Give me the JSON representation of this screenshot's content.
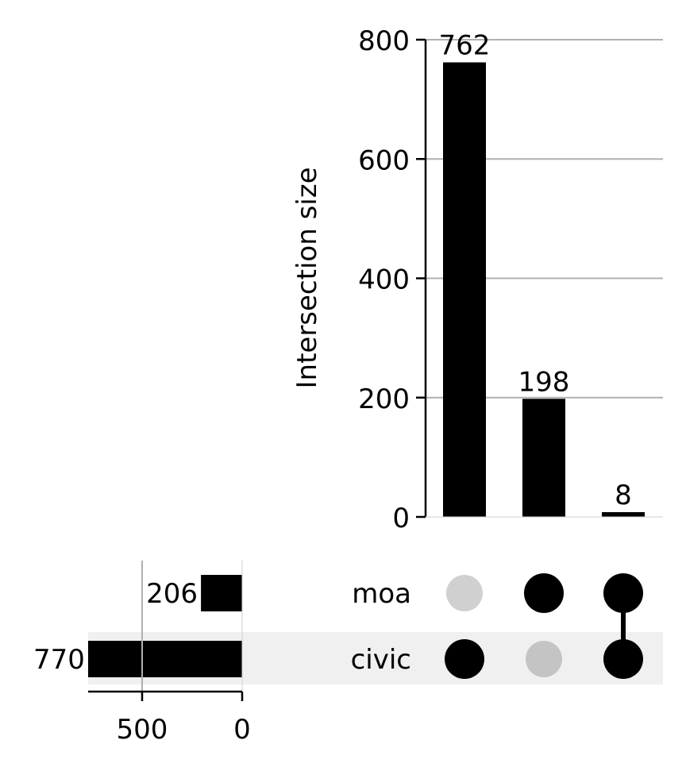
{
  "chart_data": {
    "type": "upset",
    "intersections": {
      "type": "bar",
      "ylabel": "Intersection size",
      "ylim": [
        0,
        800
      ],
      "yticks": [
        0,
        200,
        400,
        600,
        800
      ],
      "grid": true,
      "values": [
        762,
        198,
        8
      ],
      "value_labels": [
        "762",
        "198",
        "8"
      ],
      "memberships": [
        [
          "civic"
        ],
        [
          "moa"
        ],
        [
          "moa",
          "civic"
        ]
      ]
    },
    "sets": {
      "type": "bar",
      "orientation": "horizontal",
      "names": [
        "moa",
        "civic"
      ],
      "values": [
        206,
        770
      ],
      "value_labels": [
        "206",
        "770"
      ],
      "xticks": [
        500,
        0
      ],
      "xtick_labels": [
        "500",
        "0"
      ],
      "grid": true
    },
    "colors": {
      "bar": "#000000",
      "dot_active": "#000000",
      "dot_inactive_light": "#d0d0d0",
      "dot_inactive_shaded": "#c4c4c4",
      "shade_row": "#f0f0f0",
      "grid": "#b0b0b0"
    }
  }
}
